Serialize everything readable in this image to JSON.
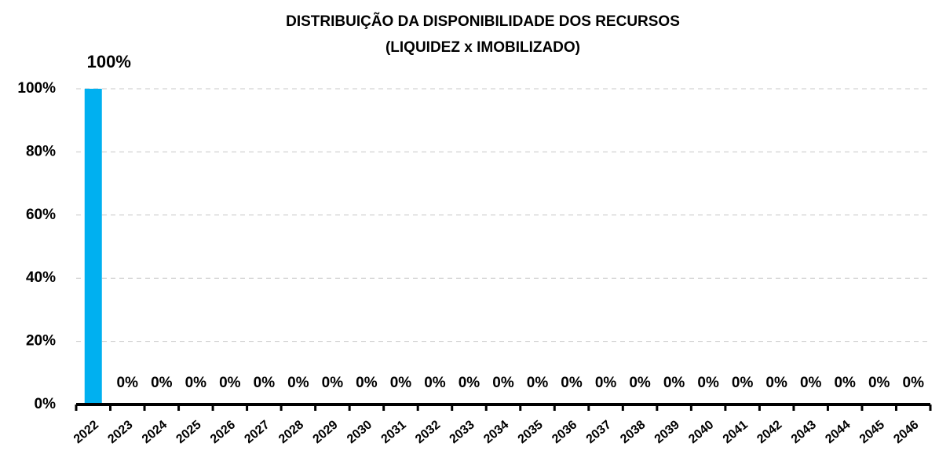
{
  "chart_data": {
    "type": "bar",
    "title": [
      "DISTRIBUIÇÃO DA DISPONIBILIDADE DOS RECURSOS",
      "(LIQUIDEZ x IMOBILIZADO)"
    ],
    "categories": [
      "2022",
      "2023",
      "2024",
      "2025",
      "2026",
      "2027",
      "2028",
      "2029",
      "2030",
      "2031",
      "2032",
      "2033",
      "2034",
      "2035",
      "2036",
      "2037",
      "2038",
      "2039",
      "2040",
      "2041",
      "2042",
      "2043",
      "2044",
      "2045",
      "2046"
    ],
    "values": [
      100,
      0,
      0,
      0,
      0,
      0,
      0,
      0,
      0,
      0,
      0,
      0,
      0,
      0,
      0,
      0,
      0,
      0,
      0,
      0,
      0,
      0,
      0,
      0,
      0
    ],
    "value_labels": [
      "100%",
      "0%",
      "0%",
      "0%",
      "0%",
      "0%",
      "0%",
      "0%",
      "0%",
      "0%",
      "0%",
      "0%",
      "0%",
      "0%",
      "0%",
      "0%",
      "0%",
      "0%",
      "0%",
      "0%",
      "0%",
      "0%",
      "0%",
      "0%",
      "0%"
    ],
    "color": "#00b0f0",
    "ylim": [
      0,
      100
    ],
    "yticks": [
      {
        "value": 0,
        "label": "0%"
      },
      {
        "value": 20,
        "label": "20%"
      },
      {
        "value": 40,
        "label": "40%"
      },
      {
        "value": 60,
        "label": "60%"
      },
      {
        "value": 80,
        "label": "80%"
      },
      {
        "value": 100,
        "label": "100%"
      }
    ],
    "grid": true
  }
}
